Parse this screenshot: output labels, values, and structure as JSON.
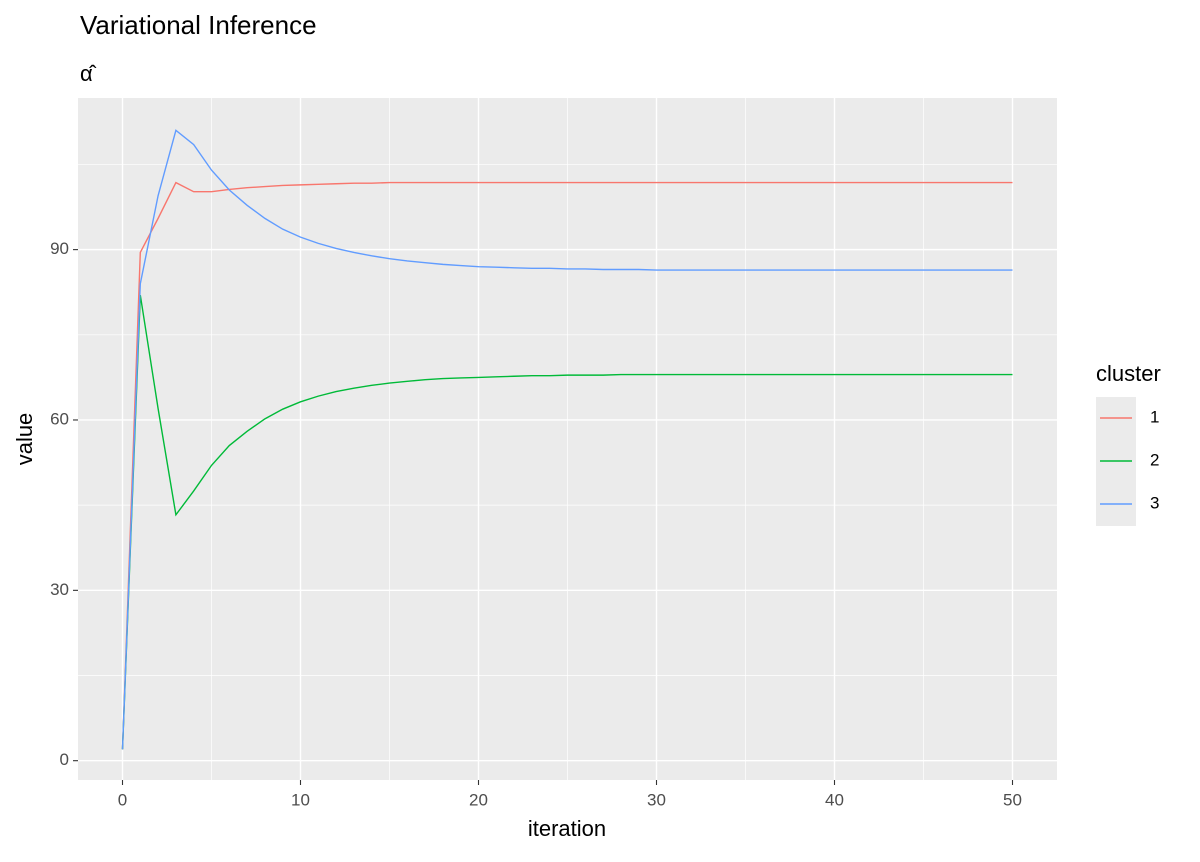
{
  "chart_data": {
    "type": "line",
    "title": "Variational Inference",
    "subtitle": "α̂",
    "x_label": "iteration",
    "y_label": "value",
    "legend_title": "cluster",
    "x": [
      0,
      1,
      2,
      3,
      4,
      5,
      6,
      7,
      8,
      9,
      10,
      11,
      12,
      13,
      14,
      15,
      16,
      17,
      18,
      19,
      20,
      21,
      22,
      23,
      24,
      25,
      26,
      27,
      28,
      29,
      30,
      31,
      32,
      33,
      34,
      35,
      36,
      37,
      38,
      39,
      40,
      41,
      42,
      43,
      44,
      45,
      46,
      47,
      48,
      49,
      50
    ],
    "series": [
      {
        "name": "1",
        "color": "#F8766D",
        "values": [
          2,
          89.5,
          95.5,
          101.8,
          100.2,
          100.2,
          100.6,
          100.9,
          101.1,
          101.3,
          101.4,
          101.5,
          101.6,
          101.7,
          101.7,
          101.8,
          101.8,
          101.8,
          101.8,
          101.8,
          101.8,
          101.8,
          101.8,
          101.8,
          101.8,
          101.8,
          101.8,
          101.8,
          101.8,
          101.8,
          101.8,
          101.8,
          101.8,
          101.8,
          101.8,
          101.8,
          101.8,
          101.8,
          101.8,
          101.8,
          101.8,
          101.8,
          101.8,
          101.8,
          101.8,
          101.8,
          101.8,
          101.8,
          101.8,
          101.8,
          101.8
        ]
      },
      {
        "name": "2",
        "color": "#00BA38",
        "values": [
          2,
          82,
          62,
          43.3,
          47.5,
          52,
          55.5,
          58,
          60.2,
          61.9,
          63.2,
          64.2,
          65,
          65.6,
          66.1,
          66.5,
          66.8,
          67.1,
          67.3,
          67.4,
          67.5,
          67.6,
          67.7,
          67.8,
          67.8,
          67.9,
          67.9,
          67.9,
          68,
          68,
          68,
          68,
          68,
          68,
          68,
          68,
          68,
          68,
          68,
          68,
          68,
          68,
          68,
          68,
          68,
          68,
          68,
          68,
          68,
          68,
          68
        ]
      },
      {
        "name": "3",
        "color": "#619CFF",
        "values": [
          2,
          84,
          99.5,
          111,
          108.5,
          104,
          100.5,
          97.8,
          95.5,
          93.6,
          92.2,
          91.1,
          90.2,
          89.5,
          88.9,
          88.4,
          88,
          87.7,
          87.4,
          87.2,
          87,
          86.9,
          86.8,
          86.7,
          86.7,
          86.6,
          86.6,
          86.5,
          86.5,
          86.5,
          86.4,
          86.4,
          86.4,
          86.4,
          86.4,
          86.4,
          86.4,
          86.4,
          86.4,
          86.4,
          86.4,
          86.4,
          86.4,
          86.4,
          86.4,
          86.4,
          86.4,
          86.4,
          86.4,
          86.4,
          86.4
        ]
      }
    ],
    "xlim": [
      -2.5,
      52.5
    ],
    "ylim": [
      -3.4,
      116.7
    ],
    "xticks": [
      0,
      10,
      20,
      30,
      40,
      50
    ],
    "yticks": [
      0,
      30,
      60,
      90
    ],
    "grid": true,
    "legend": "right"
  }
}
